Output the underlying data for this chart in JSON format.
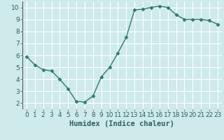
{
  "x": [
    0,
    1,
    2,
    3,
    4,
    5,
    6,
    7,
    8,
    9,
    10,
    11,
    12,
    13,
    14,
    15,
    16,
    17,
    18,
    19,
    20,
    21,
    22,
    23
  ],
  "y": [
    5.9,
    5.2,
    4.8,
    4.7,
    4.0,
    3.2,
    2.15,
    2.1,
    2.6,
    4.2,
    5.0,
    6.2,
    7.5,
    9.8,
    9.85,
    10.0,
    10.1,
    10.0,
    9.4,
    9.0,
    9.0,
    9.0,
    8.9,
    8.6
  ],
  "line_color": "#2e7d6e",
  "marker": "D",
  "marker_size": 2.5,
  "line_width": 1.0,
  "bg_color": "#ceeaea",
  "grid_color": "#ffffff",
  "xlabel": "Humidex (Indice chaleur)",
  "xlabel_fontsize": 7.5,
  "xlim": [
    -0.5,
    23.5
  ],
  "ylim": [
    1.5,
    10.5
  ],
  "yticks": [
    2,
    3,
    4,
    5,
    6,
    7,
    8,
    9,
    10
  ],
  "xticks": [
    0,
    1,
    2,
    3,
    4,
    5,
    6,
    7,
    8,
    9,
    10,
    11,
    12,
    13,
    14,
    15,
    16,
    17,
    18,
    19,
    20,
    21,
    22,
    23
  ],
  "tick_fontsize": 6.5
}
